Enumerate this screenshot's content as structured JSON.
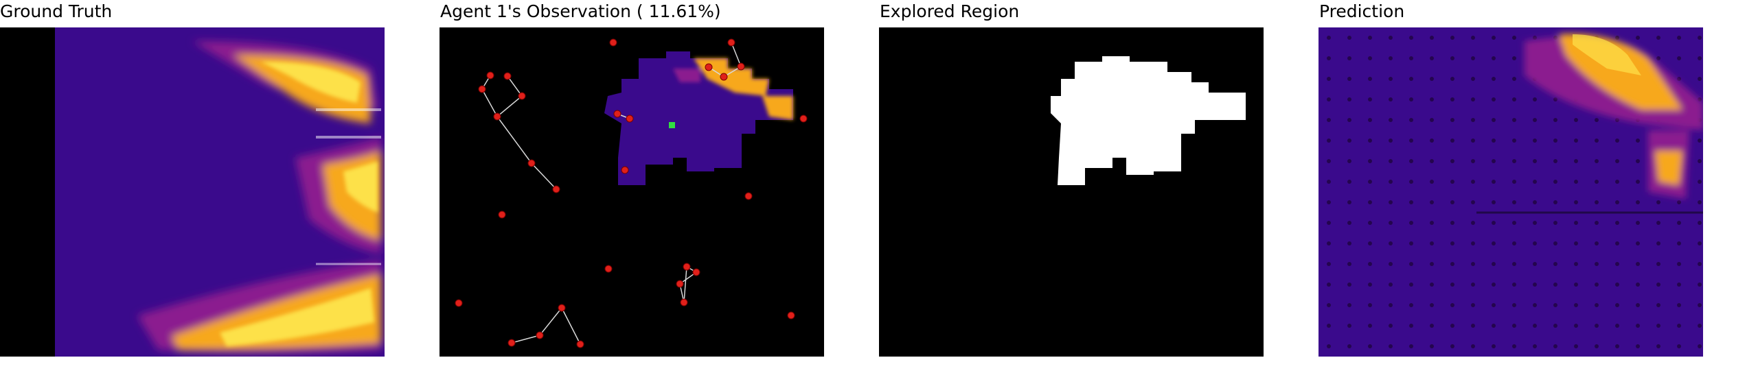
{
  "panels": [
    {
      "title": "Ground Truth"
    },
    {
      "title": "Agent 1's Observation ( 11.61%)"
    },
    {
      "title": "Explored Region"
    },
    {
      "title": "Prediction"
    }
  ],
  "colors": {
    "heat_low": "#3a0a8c",
    "heat_mid": "#8b1a8f",
    "heat_high": "#f7a81b",
    "heat_peak": "#fde14a",
    "marker": "#e0201a",
    "agent": "#31e040",
    "explored": "#ffffff",
    "background": "#000000"
  },
  "icons": {
    "waypoint": "red-waypoint-marker-icon",
    "agent": "green-agent-marker-icon"
  }
}
